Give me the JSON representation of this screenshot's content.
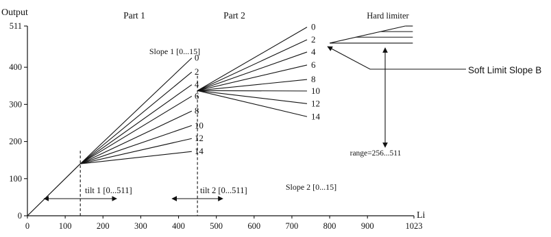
{
  "chart_data": {
    "type": "line",
    "xlabel": "Li",
    "ylabel": "Output",
    "xlim": [
      0,
      1023
    ],
    "ylim": [
      0,
      511
    ],
    "x_ticks": [
      {
        "value": 0,
        "label": "0"
      },
      {
        "value": 100,
        "label": "100"
      },
      {
        "value": 200,
        "label": "200"
      },
      {
        "value": 300,
        "label": "300"
      },
      {
        "value": 400,
        "label": "400"
      },
      {
        "value": 500,
        "label": "500"
      },
      {
        "value": 600,
        "label": "600"
      },
      {
        "value": 700,
        "label": "700"
      },
      {
        "value": 800,
        "label": "800"
      },
      {
        "value": 900,
        "label": "900"
      },
      {
        "value": 1023,
        "label": "1023"
      }
    ],
    "y_ticks": [
      {
        "value": 0,
        "label": "0"
      },
      {
        "value": 100,
        "label": "100"
      },
      {
        "value": 200,
        "label": "200"
      },
      {
        "value": 300,
        "label": "300"
      },
      {
        "value": 400,
        "label": "400"
      },
      {
        "value": 511,
        "label": "511"
      }
    ],
    "base_line": {
      "from": [
        0,
        0
      ],
      "to": [
        140,
        140
      ]
    },
    "part1": {
      "label": "Part 1",
      "origin": [
        140,
        140
      ],
      "slope_label": "Slope 1 [0...15]",
      "lines": [
        {
          "label": "0",
          "end": [
            435,
            425
          ]
        },
        {
          "label": "2",
          "end": [
            435,
            387
          ]
        },
        {
          "label": "4",
          "end": [
            435,
            353
          ]
        },
        {
          "label": "6",
          "end": [
            435,
            322
          ]
        },
        {
          "label": "8",
          "end": [
            435,
            282
          ]
        },
        {
          "label": "10",
          "end": [
            435,
            243
          ]
        },
        {
          "label": "12",
          "end": [
            435,
            208
          ]
        },
        {
          "label": "14",
          "end": [
            435,
            173
          ]
        }
      ]
    },
    "part2": {
      "label": "Part 2",
      "origin": [
        450,
        337
      ],
      "slope_label": "Slope 2 [0...15]",
      "lines": [
        {
          "label": "0",
          "end": [
            740,
            508
          ]
        },
        {
          "label": "2",
          "end": [
            740,
            474
          ]
        },
        {
          "label": "4",
          "end": [
            740,
            441
          ]
        },
        {
          "label": "6",
          "end": [
            740,
            406
          ]
        },
        {
          "label": "8",
          "end": [
            740,
            367
          ]
        },
        {
          "label": "10",
          "end": [
            740,
            336
          ]
        },
        {
          "label": "12",
          "end": [
            740,
            302
          ]
        },
        {
          "label": "14",
          "end": [
            740,
            267
          ]
        }
      ]
    },
    "tilt1": {
      "label": "tilt 1 [0...511]",
      "x": 140,
      "y_top": 175
    },
    "tilt2": {
      "label": "tilt 2 [0...511]",
      "x": 450,
      "y_top": 377
    },
    "hard_limiter": {
      "label": "Hard limiter",
      "soft_line": {
        "from": [
          800,
          465
        ],
        "to": [
          1000,
          511
        ]
      },
      "levels": [
        511,
        496,
        481,
        465
      ],
      "x_end": 1020
    },
    "soft_limit_label": "Soft Limit Slope B",
    "range_label": "range=256...511"
  }
}
